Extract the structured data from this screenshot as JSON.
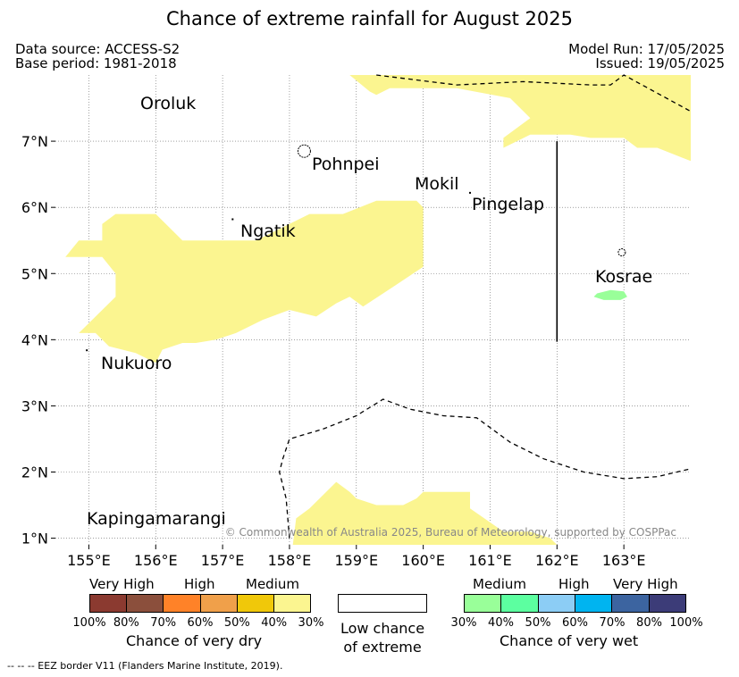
{
  "title": "Chance of extreme rainfall for August 2025",
  "meta": {
    "data_source": "Data source: ACCESS-S2",
    "base_period": "Base period: 1981-2018",
    "model_run": "Model Run: 17/05/2025",
    "issued": "Issued: 19/05/2025"
  },
  "map": {
    "lon_range": [
      154.5,
      164.0
    ],
    "lat_range": [
      0.9,
      8.0
    ],
    "lon_ticks": [
      "155°E",
      "156°E",
      "157°E",
      "158°E",
      "159°E",
      "160°E",
      "161°E",
      "162°E",
      "163°E"
    ],
    "lat_ticks": [
      "1°N",
      "2°N",
      "3°N",
      "4°N",
      "5°N",
      "6°N",
      "7°N"
    ],
    "grid": true,
    "places": [
      "Oroluk",
      "Pohnpei",
      "Mokil",
      "Pingelap",
      "Ngatik",
      "Kosrae",
      "Nukuoro",
      "Kapingamarangi"
    ],
    "copyright": "© Commonwealth of Australia 2025, Bureau of Meteorology, supported by COSPPac",
    "regions": [
      {
        "category": "dry-medium-30-40",
        "color": "#fbf590",
        "lonlat": [
          [
            158.9,
            8.0
          ],
          [
            164.0,
            8.0
          ],
          [
            164.0,
            6.7
          ],
          [
            163.5,
            6.9
          ],
          [
            163.2,
            6.9
          ],
          [
            163.0,
            7.05
          ],
          [
            162.5,
            7.05
          ],
          [
            162.2,
            7.1
          ],
          [
            161.9,
            7.1
          ],
          [
            161.6,
            7.1
          ],
          [
            161.2,
            6.9
          ],
          [
            161.2,
            7.05
          ],
          [
            161.6,
            7.35
          ],
          [
            161.3,
            7.65
          ],
          [
            160.5,
            7.8
          ],
          [
            159.5,
            7.8
          ],
          [
            159.3,
            7.7
          ],
          [
            159.2,
            7.75
          ]
        ]
      },
      {
        "category": "dry-medium-30-40",
        "color": "#fbf590",
        "lonlat": [
          [
            154.65,
            5.25
          ],
          [
            154.85,
            5.5
          ],
          [
            155.2,
            5.5
          ],
          [
            155.2,
            5.75
          ],
          [
            155.4,
            5.9
          ],
          [
            156.0,
            5.9
          ],
          [
            156.4,
            5.5
          ],
          [
            157.5,
            5.5
          ],
          [
            158.3,
            5.9
          ],
          [
            158.8,
            5.9
          ],
          [
            159.3,
            6.1
          ],
          [
            159.9,
            6.1
          ],
          [
            160.0,
            6.0
          ],
          [
            160.0,
            5.1
          ],
          [
            159.55,
            4.8
          ],
          [
            159.1,
            4.5
          ],
          [
            158.9,
            4.65
          ],
          [
            158.7,
            4.55
          ],
          [
            158.4,
            4.35
          ],
          [
            158.0,
            4.45
          ],
          [
            157.6,
            4.3
          ],
          [
            157.2,
            4.1
          ],
          [
            156.9,
            4.0
          ],
          [
            156.6,
            3.95
          ],
          [
            156.4,
            3.95
          ],
          [
            156.1,
            3.85
          ],
          [
            156.0,
            3.65
          ],
          [
            155.7,
            3.8
          ],
          [
            155.3,
            3.9
          ],
          [
            155.1,
            4.1
          ],
          [
            154.85,
            4.1
          ],
          [
            155.05,
            4.3
          ],
          [
            155.4,
            4.65
          ],
          [
            155.4,
            5.0
          ],
          [
            155.2,
            5.25
          ],
          [
            155.0,
            5.25
          ]
        ]
      },
      {
        "category": "dry-medium-30-40",
        "color": "#fbf590",
        "lonlat": [
          [
            158.05,
            0.9
          ],
          [
            158.1,
            1.3
          ],
          [
            158.3,
            1.45
          ],
          [
            158.7,
            1.85
          ],
          [
            158.9,
            1.7
          ],
          [
            159.0,
            1.6
          ],
          [
            159.3,
            1.5
          ],
          [
            159.7,
            1.5
          ],
          [
            159.9,
            1.6
          ],
          [
            160.0,
            1.7
          ],
          [
            160.7,
            1.7
          ],
          [
            160.7,
            1.45
          ],
          [
            161.2,
            1.1
          ],
          [
            161.6,
            1.1
          ],
          [
            161.9,
            1.0
          ],
          [
            162.0,
            0.9
          ]
        ]
      },
      {
        "category": "wet-medium-30-40",
        "color": "#99ff99",
        "lonlat": [
          [
            162.6,
            4.7
          ],
          [
            162.8,
            4.75
          ],
          [
            163.0,
            4.73
          ],
          [
            163.05,
            4.65
          ],
          [
            162.95,
            4.6
          ],
          [
            162.7,
            4.6
          ],
          [
            162.55,
            4.65
          ]
        ]
      }
    ],
    "islands": [
      {
        "name": "Pohnpei",
        "lon": 158.22,
        "lat": 6.85
      },
      {
        "name": "Kosrae",
        "lon": 162.97,
        "lat": 5.32
      },
      {
        "name": "Pingelap",
        "lon": 160.7,
        "lat": 6.22
      },
      {
        "name": "Ngatik",
        "lon": 157.15,
        "lat": 5.82
      },
      {
        "name": "Nukuoro",
        "lon": 154.97,
        "lat": 3.84
      }
    ],
    "eez_borders": [
      [
        [
          159.3,
          8.0
        ],
        [
          160.5,
          7.85
        ],
        [
          161.5,
          7.9
        ],
        [
          162.5,
          7.85
        ],
        [
          162.8,
          7.85
        ],
        [
          163.0,
          8.0
        ],
        [
          164.0,
          7.45
        ]
      ],
      [
        [
          158.0,
          1.0
        ],
        [
          157.95,
          1.6
        ],
        [
          157.85,
          2.0
        ],
        [
          157.9,
          2.2
        ],
        [
          158.0,
          2.5
        ],
        [
          158.5,
          2.65
        ],
        [
          159.0,
          2.85
        ],
        [
          159.4,
          3.1
        ],
        [
          159.8,
          2.95
        ],
        [
          160.3,
          2.85
        ],
        [
          160.8,
          2.82
        ],
        [
          161.3,
          2.45
        ],
        [
          161.8,
          2.2
        ],
        [
          162.4,
          2.0
        ],
        [
          163.0,
          1.9
        ],
        [
          163.5,
          1.93
        ],
        [
          164.0,
          2.05
        ]
      ]
    ],
    "boundary_line": [
      [
        162.0,
        7.0
      ],
      [
        162.0,
        3.97
      ]
    ]
  },
  "legend": {
    "dry": {
      "headers": [
        "Very High",
        "High",
        "Medium"
      ],
      "colors": [
        "#8b3a30",
        "#8b4f3c",
        "#ff8228",
        "#f0a04a",
        "#f0c80a",
        "#fbf590"
      ],
      "labels": [
        "100%",
        "80%",
        "70%",
        "60%",
        "50%",
        "40%",
        "30%"
      ],
      "caption": "Chance of very dry"
    },
    "neutral": {
      "caption_line1": "Low chance",
      "caption_line2": "of extreme",
      "color": "#ffffff"
    },
    "wet": {
      "headers": [
        "Medium",
        "High",
        "Very High"
      ],
      "colors": [
        "#99ff99",
        "#5cffa0",
        "#8ccdf5",
        "#00b4f0",
        "#3c64a0",
        "#3c3c78"
      ],
      "labels": [
        "30%",
        "40%",
        "50%",
        "60%",
        "70%",
        "80%",
        "100%"
      ],
      "caption": "Chance of very wet"
    }
  },
  "footer": "--  --  -- EEZ border V11 (Flanders Marine Institute, 2019)."
}
